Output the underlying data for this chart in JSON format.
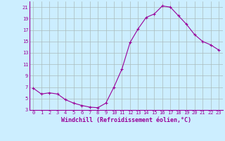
{
  "x": [
    0,
    1,
    2,
    3,
    4,
    5,
    6,
    7,
    8,
    9,
    10,
    11,
    12,
    13,
    14,
    15,
    16,
    17,
    18,
    19,
    20,
    21,
    22,
    23
  ],
  "y": [
    6.8,
    5.8,
    6.0,
    5.8,
    4.8,
    4.2,
    3.8,
    3.5,
    3.4,
    4.2,
    7.0,
    10.2,
    14.8,
    17.2,
    19.2,
    19.8,
    21.2,
    21.0,
    19.5,
    18.0,
    16.2,
    15.0,
    14.4,
    13.5
  ],
  "line_color": "#990099",
  "marker": "+",
  "marker_color": "#990099",
  "bg_color": "#cceeff",
  "grid_color": "#aabbbb",
  "xlabel": "Windchill (Refroidissement éolien,°C)",
  "xlabel_color": "#990099",
  "tick_color": "#990099",
  "ylim": [
    3,
    22
  ],
  "xlim": [
    -0.5,
    23.5
  ],
  "yticks": [
    3,
    5,
    7,
    9,
    11,
    13,
    15,
    17,
    19,
    21
  ],
  "xticks": [
    0,
    1,
    2,
    3,
    4,
    5,
    6,
    7,
    8,
    9,
    10,
    11,
    12,
    13,
    14,
    15,
    16,
    17,
    18,
    19,
    20,
    21,
    22,
    23
  ],
  "tick_fontsize": 5.0,
  "xlabel_fontsize": 6.0
}
